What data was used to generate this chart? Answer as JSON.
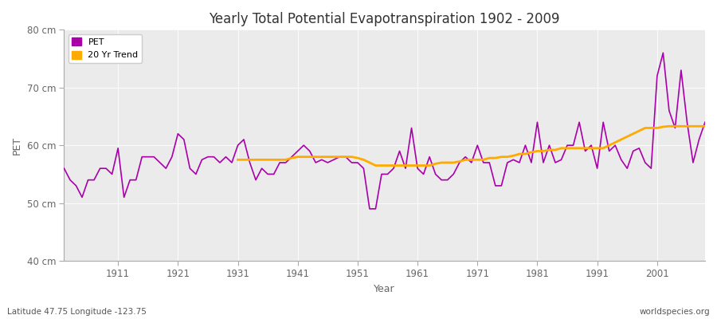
{
  "title": "Yearly Total Potential Evapotranspiration 1902 - 2009",
  "xlabel": "Year",
  "ylabel": "PET",
  "subtitle_left": "Latitude 47.75 Longitude -123.75",
  "subtitle_right": "worldspecies.org",
  "ylim": [
    40,
    80
  ],
  "xlim": [
    1902,
    2009
  ],
  "yticks": [
    40,
    50,
    60,
    70,
    80
  ],
  "ytick_labels": [
    "40 cm",
    "50 cm",
    "60 cm",
    "70 cm",
    "80 cm"
  ],
  "xticks": [
    1911,
    1921,
    1931,
    1941,
    1951,
    1961,
    1971,
    1981,
    1991,
    2001
  ],
  "fig_bg_color": "#ffffff",
  "plot_bg_color": "#ebebeb",
  "grid_color": "#ffffff",
  "pet_color": "#aa00aa",
  "trend_color": "#ffaa00",
  "pet_linewidth": 1.2,
  "trend_linewidth": 2.0,
  "legend_pet": "PET",
  "legend_trend": "20 Yr Trend",
  "axis_color": "#aaaaaa",
  "tick_label_color": "#666666",
  "years": [
    1902,
    1903,
    1904,
    1905,
    1906,
    1907,
    1908,
    1909,
    1910,
    1911,
    1912,
    1913,
    1914,
    1915,
    1916,
    1917,
    1918,
    1919,
    1920,
    1921,
    1922,
    1923,
    1924,
    1925,
    1926,
    1927,
    1928,
    1929,
    1930,
    1931,
    1932,
    1933,
    1934,
    1935,
    1936,
    1937,
    1938,
    1939,
    1940,
    1941,
    1942,
    1943,
    1944,
    1945,
    1946,
    1947,
    1948,
    1949,
    1950,
    1951,
    1952,
    1953,
    1954,
    1955,
    1956,
    1957,
    1958,
    1959,
    1960,
    1961,
    1962,
    1963,
    1964,
    1965,
    1966,
    1967,
    1968,
    1969,
    1970,
    1971,
    1972,
    1973,
    1974,
    1975,
    1976,
    1977,
    1978,
    1979,
    1980,
    1981,
    1982,
    1983,
    1984,
    1985,
    1986,
    1987,
    1988,
    1989,
    1990,
    1991,
    1992,
    1993,
    1994,
    1995,
    1996,
    1997,
    1998,
    1999,
    2000,
    2001,
    2002,
    2003,
    2004,
    2005,
    2006,
    2007,
    2008,
    2009
  ],
  "pet_values": [
    56.0,
    54.0,
    53.0,
    51.0,
    54.0,
    54.0,
    56.0,
    56.0,
    55.0,
    59.5,
    51.0,
    54.0,
    54.0,
    58.0,
    58.0,
    58.0,
    57.0,
    56.0,
    58.0,
    62.0,
    61.0,
    56.0,
    55.0,
    57.5,
    58.0,
    58.0,
    57.0,
    58.0,
    57.0,
    60.0,
    61.0,
    57.0,
    54.0,
    56.0,
    55.0,
    55.0,
    57.0,
    57.0,
    58.0,
    59.0,
    60.0,
    59.0,
    57.0,
    57.5,
    57.0,
    57.5,
    58.0,
    58.0,
    57.0,
    57.0,
    56.0,
    49.0,
    49.0,
    55.0,
    55.0,
    56.0,
    59.0,
    56.0,
    63.0,
    56.0,
    55.0,
    58.0,
    55.0,
    54.0,
    54.0,
    55.0,
    57.0,
    58.0,
    57.0,
    60.0,
    57.0,
    57.0,
    53.0,
    53.0,
    57.0,
    57.5,
    57.0,
    60.0,
    57.0,
    64.0,
    57.0,
    60.0,
    57.0,
    57.5,
    60.0,
    60.0,
    64.0,
    59.0,
    60.0,
    56.0,
    64.0,
    59.0,
    60.0,
    57.5,
    56.0,
    59.0,
    59.5,
    57.0,
    56.0,
    72.0,
    76.0,
    66.0,
    63.0,
    73.0,
    64.0,
    57.0,
    61.0,
    64.0
  ],
  "trend_years": [
    1931,
    1932,
    1933,
    1934,
    1935,
    1936,
    1937,
    1938,
    1939,
    1940,
    1941,
    1942,
    1943,
    1944,
    1945,
    1946,
    1947,
    1948,
    1949,
    1950,
    1951,
    1952,
    1953,
    1954,
    1955,
    1956,
    1957,
    1958,
    1959,
    1960,
    1961,
    1962,
    1963,
    1964,
    1965,
    1966,
    1967,
    1968,
    1969,
    1970,
    1971,
    1972,
    1973,
    1974,
    1975,
    1976,
    1977,
    1978,
    1979,
    1980,
    1981,
    1982,
    1983,
    1984,
    1985,
    1986,
    1987,
    1988,
    1989,
    1990,
    1991,
    1992,
    1993,
    1994,
    1995,
    1996,
    1997,
    1998,
    1999,
    2000,
    2001,
    2002,
    2003,
    2004,
    2005,
    2006,
    2007,
    2008,
    2009
  ],
  "trend_values": [
    57.5,
    57.5,
    57.5,
    57.5,
    57.5,
    57.5,
    57.5,
    57.5,
    57.5,
    57.8,
    58.0,
    58.0,
    58.0,
    58.0,
    58.0,
    58.0,
    58.0,
    58.0,
    58.0,
    58.0,
    57.8,
    57.5,
    57.0,
    56.5,
    56.5,
    56.5,
    56.5,
    56.5,
    56.5,
    56.5,
    56.5,
    56.5,
    56.5,
    56.8,
    57.0,
    57.0,
    57.0,
    57.2,
    57.5,
    57.5,
    57.5,
    57.5,
    57.8,
    57.8,
    58.0,
    58.0,
    58.2,
    58.5,
    58.5,
    58.8,
    59.0,
    59.0,
    59.2,
    59.2,
    59.5,
    59.5,
    59.5,
    59.5,
    59.5,
    59.5,
    59.5,
    59.5,
    60.0,
    60.5,
    61.0,
    61.5,
    62.0,
    62.5,
    63.0,
    63.0,
    63.0,
    63.2,
    63.3,
    63.3,
    63.3,
    63.3,
    63.3,
    63.3,
    63.3
  ]
}
